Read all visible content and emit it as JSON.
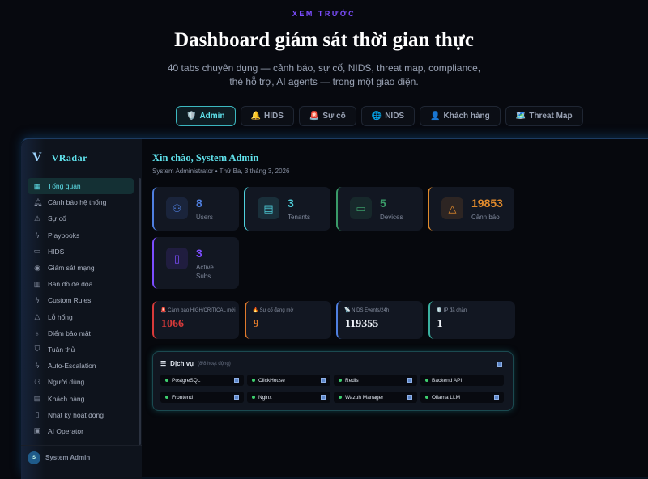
{
  "header": {
    "eyebrow": "XEM TRƯỚC",
    "title": "Dashboard giám sát thời gian thực",
    "subtitle": "40 tabs chuyên dụng — cảnh báo, sự cố, NIDS, threat map, compliance, thẻ hỗ trợ, AI agents — trong một giao diện."
  },
  "tabs": [
    {
      "icon": "🛡️",
      "label": "Admin",
      "active": true
    },
    {
      "icon": "🔔",
      "label": "HIDS"
    },
    {
      "icon": "🚨",
      "label": "Sự cố"
    },
    {
      "icon": "🌐",
      "label": "NIDS"
    },
    {
      "icon": "👤",
      "label": "Khách hàng"
    },
    {
      "icon": "🗺️",
      "label": "Threat Map"
    }
  ],
  "app": {
    "logo": "V",
    "name": "VRadar"
  },
  "sidebar": {
    "items": [
      {
        "icon": "grid-icon",
        "glyph": "▦",
        "label": "Tổng quan",
        "active": true
      },
      {
        "icon": "bell-icon",
        "glyph": "🔔︎",
        "label": "Cảnh báo hệ thống"
      },
      {
        "icon": "siren-icon",
        "glyph": "⚠",
        "label": "Sự cố"
      },
      {
        "icon": "zap-icon",
        "glyph": "ϟ",
        "label": "Playbooks"
      },
      {
        "icon": "laptop-icon",
        "glyph": "▭",
        "label": "HIDS"
      },
      {
        "icon": "radio-icon",
        "glyph": "◉",
        "label": "Giám sát mạng"
      },
      {
        "icon": "map-icon",
        "glyph": "▥",
        "label": "Bản đồ đe dọa"
      },
      {
        "icon": "zap-icon",
        "glyph": "ϟ",
        "label": "Custom Rules"
      },
      {
        "icon": "warning-icon",
        "glyph": "△",
        "label": "Lỗ hổng"
      },
      {
        "icon": "award-icon",
        "glyph": "♁",
        "label": "Điểm bảo mật"
      },
      {
        "icon": "shield-icon",
        "glyph": "⛉",
        "label": "Tuân thủ"
      },
      {
        "icon": "zap-icon",
        "glyph": "ϟ",
        "label": "Auto-Escalation"
      },
      {
        "icon": "users-icon",
        "glyph": "⚇",
        "label": "Người dùng"
      },
      {
        "icon": "building-icon",
        "glyph": "▤",
        "label": "Khách hàng"
      },
      {
        "icon": "scroll-icon",
        "glyph": "▯",
        "label": "Nhật ký hoạt động"
      },
      {
        "icon": "cpu-icon",
        "glyph": "▣",
        "label": "AI Operator"
      }
    ],
    "user": {
      "initial": "S",
      "name": "System Admin"
    }
  },
  "main": {
    "greeting": "Xin chào, System Admin",
    "meta": "System Administrator • Thứ Ba, 3 tháng 3, 2026",
    "stats": [
      {
        "value": "8",
        "label": "Users",
        "color": "#4f7fe0",
        "icon": "users-icon",
        "glyph": "⚇"
      },
      {
        "value": "3",
        "label": "Tenants",
        "color": "#4fd0dc",
        "icon": "building-icon",
        "glyph": "▤"
      },
      {
        "value": "5",
        "label": "Devices",
        "color": "#3a9a68",
        "icon": "laptop-icon",
        "glyph": "▭"
      },
      {
        "value": "19853",
        "label": "Cảnh báo",
        "color": "#e08a2c",
        "icon": "bell-icon",
        "glyph": "△"
      },
      {
        "value": "3",
        "label": "Active Subs",
        "color": "#7c4dff",
        "icon": "scroll-icon",
        "glyph": "▯"
      }
    ],
    "alerts": [
      {
        "icon": "🚨",
        "label": "Cảnh báo HIGH/CRITICAL mới",
        "value": "1066",
        "color": "#d83a3a"
      },
      {
        "icon": "🔥",
        "label": "Sự cố đang mở",
        "value": "9",
        "color": "#e07a2c"
      },
      {
        "icon": "📡",
        "label": "NIDS Events/24h",
        "value": "119355",
        "color": "#4f7fe0"
      },
      {
        "icon": "🛡️",
        "label": "IP đã chặn",
        "value": "1",
        "color": "#3ab0a0"
      }
    ],
    "services": {
      "title": "Dịch vụ",
      "status": "(8/8 hoạt động)",
      "status_color": "#3ecf6e",
      "items": [
        "PostgreSQL",
        "ClickHouse",
        "Redis",
        "Backend API",
        "Frontend",
        "Nginx",
        "Wazuh Manager",
        "Ollama LLM"
      ]
    }
  }
}
